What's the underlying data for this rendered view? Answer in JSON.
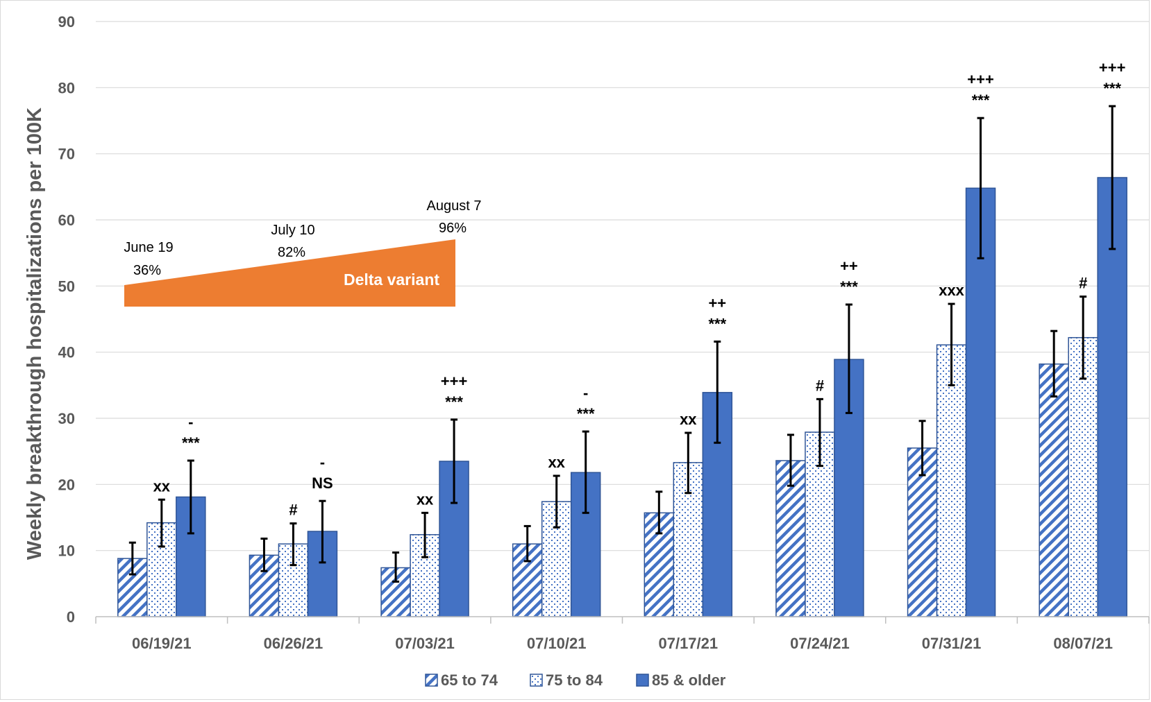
{
  "chart_data": {
    "type": "bar",
    "ylabel": "Weekly breakthrough hospitalizations per 100K",
    "xlabel": "",
    "ylim": [
      0,
      90
    ],
    "yticks": [
      "0",
      "10",
      "20",
      "30",
      "40",
      "50",
      "60",
      "70",
      "80",
      "90"
    ],
    "grid": true,
    "legend_position": "bottom",
    "categories": [
      "06/19/21",
      "06/26/21",
      "07/03/21",
      "07/10/21",
      "07/17/21",
      "07/24/21",
      "07/31/21",
      "08/07/21"
    ],
    "series": [
      {
        "name": "65 to 74",
        "pattern": "diagonal-stripes",
        "color": "#4472c4",
        "values": [
          8.8,
          9.3,
          7.4,
          11.0,
          15.7,
          23.6,
          25.5,
          38.2
        ],
        "error_low": [
          6.4,
          6.9,
          5.3,
          8.4,
          12.6,
          19.8,
          21.4,
          33.3
        ],
        "error_high": [
          11.2,
          11.8,
          9.7,
          13.7,
          18.9,
          27.5,
          29.6,
          43.2
        ]
      },
      {
        "name": "75 to 84",
        "pattern": "dotted",
        "color": "#4472c4",
        "values": [
          14.2,
          11.0,
          12.4,
          17.4,
          23.3,
          27.9,
          41.1,
          42.2
        ],
        "error_low": [
          10.6,
          7.8,
          9.0,
          13.5,
          18.7,
          22.8,
          35.0,
          36.0
        ],
        "error_high": [
          17.7,
          14.1,
          15.7,
          21.3,
          27.8,
          32.9,
          47.3,
          48.4
        ]
      },
      {
        "name": "85 & older",
        "pattern": "solid",
        "color": "#4472c4",
        "values": [
          18.1,
          12.9,
          23.5,
          21.8,
          33.9,
          38.9,
          64.8,
          66.4
        ],
        "error_low": [
          12.6,
          8.2,
          17.2,
          15.7,
          26.3,
          30.8,
          54.2,
          55.6
        ],
        "error_high": [
          23.6,
          17.5,
          29.8,
          28.0,
          41.6,
          47.2,
          75.4,
          77.2
        ]
      }
    ],
    "significance": [
      {
        "mid": "xx",
        "top": [
          "-",
          "***"
        ]
      },
      {
        "mid": "#",
        "top": [
          "-",
          "NS"
        ]
      },
      {
        "mid": "xx",
        "top": [
          "+++",
          "***"
        ]
      },
      {
        "mid": "xx",
        "top": [
          "-",
          "***"
        ]
      },
      {
        "mid": "xx",
        "top": [
          "++",
          "***"
        ]
      },
      {
        "mid": "#",
        "top": [
          "++",
          "***"
        ]
      },
      {
        "mid": "xxx",
        "top": [
          "+++",
          "***"
        ]
      },
      {
        "mid": "#",
        "top": [
          "+++",
          "***"
        ]
      }
    ],
    "delta_variant": {
      "label": "Delta variant",
      "color": "#ed7d31",
      "points": [
        {
          "date": "June 19",
          "pct": "36%"
        },
        {
          "date": "July 10",
          "pct": "82%"
        },
        {
          "date": "August 7",
          "pct": "96%"
        }
      ]
    }
  }
}
